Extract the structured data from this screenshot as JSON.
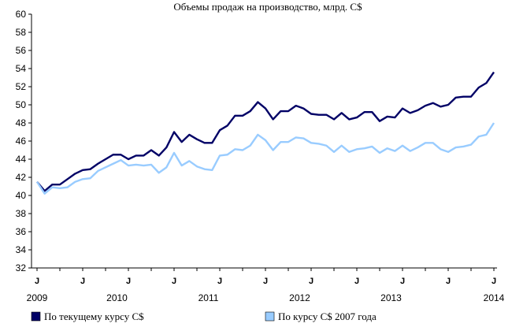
{
  "chart_data": {
    "type": "line",
    "title": "Объемы продаж на производство, млрд. C$",
    "ylim": [
      32,
      60
    ],
    "yticks": [
      32,
      34,
      36,
      38,
      40,
      42,
      44,
      46,
      48,
      50,
      52,
      54,
      56,
      58,
      60
    ],
    "x_start": "2009-01",
    "x_end": "2014-01",
    "month_marker": "J",
    "year_labels": [
      "2009",
      "2010",
      "2011",
      "2012",
      "2013",
      "2014"
    ],
    "grid": false,
    "legend": "bottom",
    "series": [
      {
        "name": "По текущему курсу C$",
        "color": "#000066",
        "values": [
          41.5,
          40.5,
          41.2,
          41.2,
          41.8,
          42.4,
          42.8,
          42.9,
          43.5,
          44.0,
          44.5,
          44.5,
          44.0,
          44.4,
          44.4,
          45.0,
          44.4,
          45.3,
          47.0,
          45.9,
          46.7,
          46.2,
          45.8,
          45.8,
          47.2,
          47.7,
          48.8,
          48.8,
          49.3,
          50.3,
          49.6,
          48.4,
          49.3,
          49.3,
          49.9,
          49.6,
          49.0,
          48.9,
          48.9,
          48.4,
          49.1,
          48.4,
          48.6,
          49.2,
          49.2,
          48.2,
          48.7,
          48.6,
          49.6,
          49.1,
          49.4,
          49.9,
          50.2,
          49.8,
          50.0,
          50.8,
          50.9,
          50.9,
          51.9,
          52.4,
          53.6
        ]
      },
      {
        "name": "По курсу C$ 2007 года",
        "color": "#99ccff",
        "values": [
          41.5,
          40.2,
          40.9,
          40.8,
          40.9,
          41.5,
          41.8,
          41.9,
          42.7,
          43.1,
          43.5,
          43.9,
          43.3,
          43.4,
          43.3,
          43.4,
          42.5,
          43.1,
          44.7,
          43.3,
          43.8,
          43.2,
          42.9,
          42.8,
          44.4,
          44.5,
          45.1,
          45.0,
          45.5,
          46.7,
          46.1,
          45.0,
          45.9,
          45.9,
          46.4,
          46.3,
          45.8,
          45.7,
          45.5,
          44.8,
          45.5,
          44.8,
          45.1,
          45.2,
          45.4,
          44.7,
          45.2,
          44.9,
          45.5,
          44.9,
          45.3,
          45.8,
          45.8,
          45.1,
          44.8,
          45.3,
          45.4,
          45.6,
          46.5,
          46.7,
          48.0
        ]
      }
    ]
  }
}
